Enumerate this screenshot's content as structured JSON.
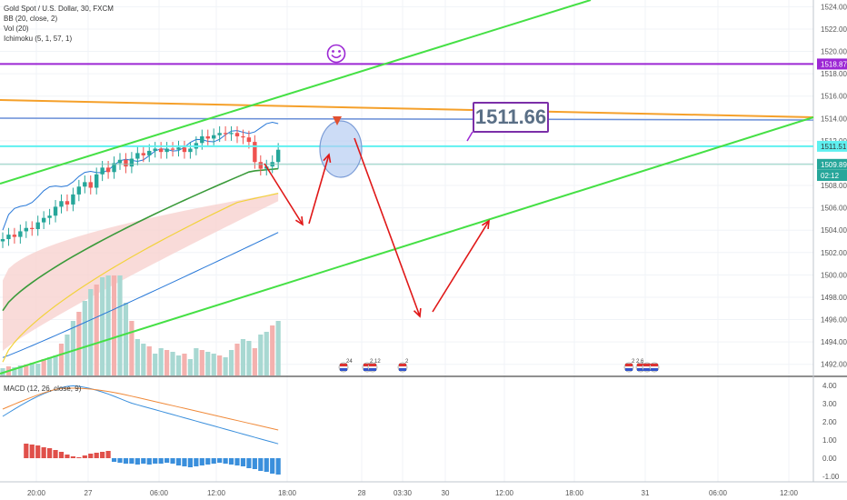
{
  "legend": {
    "symbol": "Gold Spot / U.S. Dollar, 30, FXCM",
    "bb": "BB (20, close, 2)",
    "vol": "Vol (20)",
    "ichimoku": "Ichimoku (5, 1, 57, 1)"
  },
  "macd_legend": "MACD (12, 26, close, 9)",
  "callout": "1511.66",
  "colors": {
    "candle_up": "#26a69a",
    "candle_down": "#ef5350",
    "bb": "#2979d8",
    "ichimoku_base": "#3a9a3a",
    "ichimoku_lead": "#f2d23c",
    "cloud": "#f7d2cf",
    "channel": "#45e045",
    "resistance_purple": "#9c27d4",
    "orange_line": "#f5a02a",
    "blue_line": "#6a8fd8",
    "cyan_line": "#5ff0f0",
    "arrow": "#e01818",
    "macd": "#3a8fdc",
    "signal": "#f08a3a"
  },
  "chart_data": {
    "type": "line",
    "title": "Gold Spot / U.S. Dollar, 30, FXCM",
    "y_axis": {
      "ticks": [
        "1524.00",
        "1522.00",
        "1520.00",
        "1518.00",
        "1516.00",
        "1514.00",
        "1512.00",
        "1510.00",
        "1508.00",
        "1506.00",
        "1504.00",
        "1502.00",
        "1500.00",
        "1498.00",
        "1496.00",
        "1494.00",
        "1492.00"
      ],
      "ylim": [
        1491,
        1524.6
      ]
    },
    "x_axis": {
      "ticks": [
        "20:00",
        "27",
        "06:00",
        "12:00",
        "18:00",
        "28",
        "03:30",
        "30",
        "12:00",
        "18:00",
        "31",
        "06:00",
        "12:00"
      ]
    },
    "price_labels": [
      {
        "text": "1518.87",
        "value": 1518.87,
        "color": "#9c27d4"
      },
      {
        "text": "1511.51",
        "value": 1511.51,
        "color": "#5ff0f0"
      },
      {
        "text": "1509.89",
        "value": 1509.89,
        "color": "#26a69a"
      },
      {
        "text": "02:12",
        "value": 1508.9,
        "color": "#26a69a"
      }
    ],
    "levels": {
      "purple": 1518.87,
      "cyan": 1511.51,
      "current": 1509.89
    },
    "macd_axis": {
      "ticks": [
        "4.00",
        "3.00",
        "2.00",
        "1.00",
        "0.00",
        "-1.00"
      ],
      "ylim": [
        -1.3,
        4.3
      ]
    },
    "events": [
      "24",
      "2 12",
      "2",
      "2 2 6"
    ]
  }
}
